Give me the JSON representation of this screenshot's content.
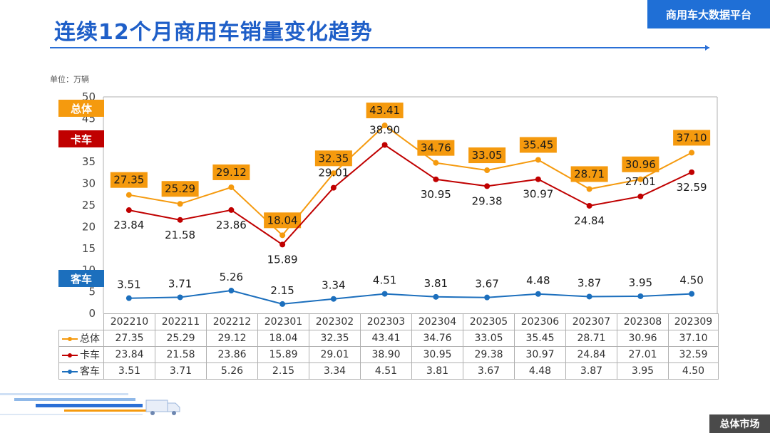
{
  "header": {
    "title": "连续12个月商用车销量变化趋势",
    "platform": "商用车大数据平台"
  },
  "footer": {
    "section": "总体市场"
  },
  "colors": {
    "total": "#f59a0e",
    "truck": "#c00000",
    "bus": "#1c6fbd",
    "brand": "#1f6fd6"
  },
  "chart_data": {
    "type": "line",
    "title": "连续12个月商用车销量变化趋势",
    "unit_label": "单位：万辆",
    "xlabel": "",
    "ylabel": "",
    "ylim": [
      0,
      50
    ],
    "yticks": [
      "0",
      "5",
      "10",
      "15",
      "20",
      "25",
      "30",
      "35",
      "40",
      "45",
      "50"
    ],
    "grid": false,
    "categories": [
      "202210",
      "202211",
      "202212",
      "202301",
      "202302",
      "202303",
      "202304",
      "202305",
      "202306",
      "202307",
      "202308",
      "202309"
    ],
    "series": [
      {
        "name": "总体",
        "values": [
          27.35,
          25.29,
          29.12,
          18.04,
          32.35,
          43.41,
          34.76,
          33.05,
          35.45,
          28.71,
          30.96,
          37.1
        ],
        "labels": [
          "27.35",
          "25.29",
          "29.12",
          "18.04",
          "32.35",
          "43.41",
          "34.76",
          "33.05",
          "35.45",
          "28.71",
          "30.96",
          "37.10"
        ]
      },
      {
        "name": "卡车",
        "values": [
          23.84,
          21.58,
          23.86,
          15.89,
          29.01,
          38.9,
          30.95,
          29.38,
          30.97,
          24.84,
          27.01,
          32.59
        ],
        "labels": [
          "23.84",
          "21.58",
          "23.86",
          "15.89",
          "29.01",
          "38.90",
          "30.95",
          "29.38",
          "30.97",
          "24.84",
          "27.01",
          "32.59"
        ]
      },
      {
        "name": "客车",
        "values": [
          3.51,
          3.71,
          5.26,
          2.15,
          3.34,
          4.51,
          3.81,
          3.67,
          4.48,
          3.87,
          3.95,
          4.5
        ],
        "labels": [
          "3.51",
          "3.71",
          "5.26",
          "2.15",
          "3.34",
          "4.51",
          "3.81",
          "3.67",
          "4.48",
          "3.87",
          "3.95",
          "4.50"
        ]
      }
    ]
  }
}
